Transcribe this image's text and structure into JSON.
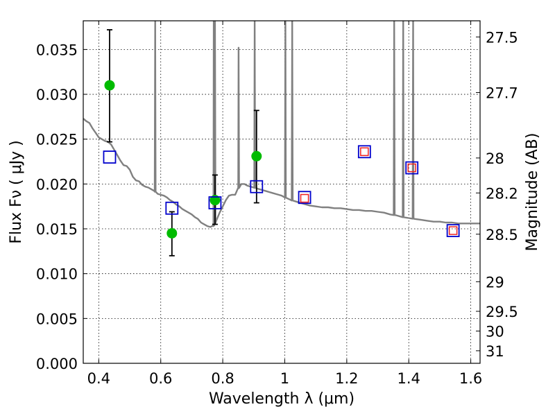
{
  "chart_data": {
    "type": "scatter",
    "xlabel": "Wavelength  λ (μm)",
    "ylabel": "Flux  Fν  ( μJy )",
    "ylabel_right": "Magnitude (AB)",
    "xlim": [
      0.35,
      1.63
    ],
    "ylim": [
      0.0,
      0.0382
    ],
    "grid": true,
    "x_ticks": [
      {
        "value": 0.4,
        "label": "0.4"
      },
      {
        "value": 0.6,
        "label": "0.6"
      },
      {
        "value": 0.8,
        "label": "0.8"
      },
      {
        "value": 1.0,
        "label": "1"
      },
      {
        "value": 1.2,
        "label": "1.2"
      },
      {
        "value": 1.4,
        "label": "1.4"
      },
      {
        "value": 1.6,
        "label": "1.6"
      }
    ],
    "y_ticks": [
      {
        "value": 0.0,
        "label": "0.000"
      },
      {
        "value": 0.005,
        "label": "0.005"
      },
      {
        "value": 0.01,
        "label": "0.010"
      },
      {
        "value": 0.015,
        "label": "0.015"
      },
      {
        "value": 0.02,
        "label": "0.020"
      },
      {
        "value": 0.025,
        "label": "0.025"
      },
      {
        "value": 0.03,
        "label": "0.030"
      },
      {
        "value": 0.035,
        "label": "0.035"
      }
    ],
    "right_ticks": [
      {
        "flux": 0.0364,
        "label": "27.5"
      },
      {
        "flux": 0.0302,
        "label": "27.7"
      },
      {
        "flux": 0.0229,
        "label": "28"
      },
      {
        "flux": 0.019,
        "label": "28.2"
      },
      {
        "flux": 0.0144,
        "label": "28.5"
      },
      {
        "flux": 0.0091,
        "label": "29"
      },
      {
        "flux": 0.0058,
        "label": "29.5"
      },
      {
        "flux": 0.0036,
        "label": "30"
      },
      {
        "flux": 0.0014,
        "label": "31"
      }
    ],
    "sed_model": {
      "color": "#808080",
      "points": [
        [
          0.35,
          0.0273
        ],
        [
          0.36,
          0.027
        ],
        [
          0.37,
          0.0268
        ],
        [
          0.38,
          0.0262
        ],
        [
          0.39,
          0.0257
        ],
        [
          0.4,
          0.0252
        ],
        [
          0.41,
          0.025
        ],
        [
          0.42,
          0.0248
        ],
        [
          0.43,
          0.0247
        ],
        [
          0.44,
          0.0244
        ],
        [
          0.45,
          0.0238
        ],
        [
          0.46,
          0.0232
        ],
        [
          0.47,
          0.0226
        ],
        [
          0.48,
          0.0221
        ],
        [
          0.49,
          0.022
        ],
        [
          0.5,
          0.0216
        ],
        [
          0.51,
          0.0208
        ],
        [
          0.52,
          0.0204
        ],
        [
          0.53,
          0.0203
        ],
        [
          0.54,
          0.0199
        ],
        [
          0.55,
          0.0197
        ],
        [
          0.56,
          0.0196
        ],
        [
          0.57,
          0.0194
        ],
        [
          0.58,
          0.0192
        ],
        [
          0.59,
          0.0189
        ],
        [
          0.6,
          0.0188
        ],
        [
          0.61,
          0.0187
        ],
        [
          0.62,
          0.0185
        ],
        [
          0.63,
          0.0182
        ],
        [
          0.64,
          0.018
        ],
        [
          0.65,
          0.0177
        ],
        [
          0.66,
          0.0175
        ],
        [
          0.67,
          0.0172
        ],
        [
          0.68,
          0.017
        ],
        [
          0.69,
          0.0168
        ],
        [
          0.7,
          0.0166
        ],
        [
          0.71,
          0.0163
        ],
        [
          0.72,
          0.0161
        ],
        [
          0.73,
          0.0157
        ],
        [
          0.74,
          0.0155
        ],
        [
          0.75,
          0.0153
        ],
        [
          0.76,
          0.0152
        ],
        [
          0.77,
          0.0153
        ],
        [
          0.78,
          0.016
        ],
        [
          0.79,
          0.0168
        ],
        [
          0.8,
          0.0175
        ],
        [
          0.81,
          0.0182
        ],
        [
          0.82,
          0.0187
        ],
        [
          0.83,
          0.0188
        ],
        [
          0.84,
          0.0188
        ],
        [
          0.85,
          0.0195
        ],
        [
          0.86,
          0.02
        ],
        [
          0.87,
          0.02
        ],
        [
          0.88,
          0.0198
        ],
        [
          0.89,
          0.0197
        ],
        [
          0.9,
          0.0196
        ],
        [
          0.91,
          0.0195
        ],
        [
          0.92,
          0.0194
        ],
        [
          0.93,
          0.0193
        ],
        [
          0.94,
          0.0192
        ],
        [
          0.95,
          0.0191
        ],
        [
          0.96,
          0.019
        ],
        [
          0.97,
          0.0189
        ],
        [
          0.98,
          0.0188
        ],
        [
          0.99,
          0.0187
        ],
        [
          1.0,
          0.0185
        ],
        [
          1.02,
          0.0182
        ],
        [
          1.04,
          0.018
        ],
        [
          1.06,
          0.0178
        ],
        [
          1.08,
          0.0176
        ],
        [
          1.1,
          0.0175
        ],
        [
          1.12,
          0.0174
        ],
        [
          1.14,
          0.0174
        ],
        [
          1.16,
          0.0173
        ],
        [
          1.18,
          0.0173
        ],
        [
          1.2,
          0.0172
        ],
        [
          1.22,
          0.0171
        ],
        [
          1.24,
          0.0171
        ],
        [
          1.26,
          0.017
        ],
        [
          1.28,
          0.017
        ],
        [
          1.3,
          0.0169
        ],
        [
          1.32,
          0.0168
        ],
        [
          1.34,
          0.0166
        ],
        [
          1.36,
          0.0165
        ],
        [
          1.38,
          0.0163
        ],
        [
          1.4,
          0.0162
        ],
        [
          1.42,
          0.0161
        ],
        [
          1.44,
          0.016
        ],
        [
          1.46,
          0.0159
        ],
        [
          1.48,
          0.0158
        ],
        [
          1.5,
          0.0158
        ],
        [
          1.52,
          0.0157
        ],
        [
          1.54,
          0.0157
        ],
        [
          1.56,
          0.0156
        ],
        [
          1.58,
          0.0156
        ],
        [
          1.6,
          0.0156
        ],
        [
          1.62,
          0.0156
        ],
        [
          1.63,
          0.0156
        ]
      ],
      "emission_lines": [
        {
          "x": 0.582,
          "peak": 0.0382
        },
        {
          "x": 0.771,
          "peak": 0.0382
        },
        {
          "x": 0.775,
          "peak": 0.0382
        },
        {
          "x": 0.851,
          "peak": 0.0352
        },
        {
          "x": 0.903,
          "peak": 0.0382
        },
        {
          "x": 1.002,
          "peak": 0.0382
        },
        {
          "x": 1.024,
          "peak": 0.0382
        },
        {
          "x": 1.353,
          "peak": 0.0382
        },
        {
          "x": 1.382,
          "peak": 0.0382
        },
        {
          "x": 1.414,
          "peak": 0.0382
        }
      ]
    },
    "series": [
      {
        "name": "observed",
        "marker": "circle",
        "color": "#00bb00",
        "points": [
          {
            "x": 0.435,
            "y": 0.031,
            "yerr_low": 0.0247,
            "yerr_high": 0.0372
          },
          {
            "x": 0.636,
            "y": 0.0145,
            "yerr_low": 0.012,
            "yerr_high": 0.0169
          },
          {
            "x": 0.775,
            "y": 0.0182,
            "yerr_low": 0.0155,
            "yerr_high": 0.021
          },
          {
            "x": 0.909,
            "y": 0.0231,
            "yerr_low": 0.0179,
            "yerr_high": 0.0282
          }
        ]
      },
      {
        "name": "model_photometry",
        "marker": "square",
        "color": "#0000cc",
        "points": [
          {
            "x": 0.435,
            "y": 0.023
          },
          {
            "x": 0.636,
            "y": 0.0173
          },
          {
            "x": 0.775,
            "y": 0.0179
          },
          {
            "x": 0.909,
            "y": 0.0197
          },
          {
            "x": 1.064,
            "y": 0.0185
          },
          {
            "x": 1.257,
            "y": 0.0236
          },
          {
            "x": 1.41,
            "y": 0.0218
          },
          {
            "x": 1.543,
            "y": 0.0148
          }
        ]
      },
      {
        "name": "model_photometry_red",
        "marker": "square",
        "color": "#ee2222",
        "points": [
          {
            "x": 1.064,
            "y": 0.0184
          },
          {
            "x": 1.257,
            "y": 0.0236
          },
          {
            "x": 1.41,
            "y": 0.0218
          },
          {
            "x": 1.543,
            "y": 0.0148
          }
        ]
      }
    ]
  }
}
